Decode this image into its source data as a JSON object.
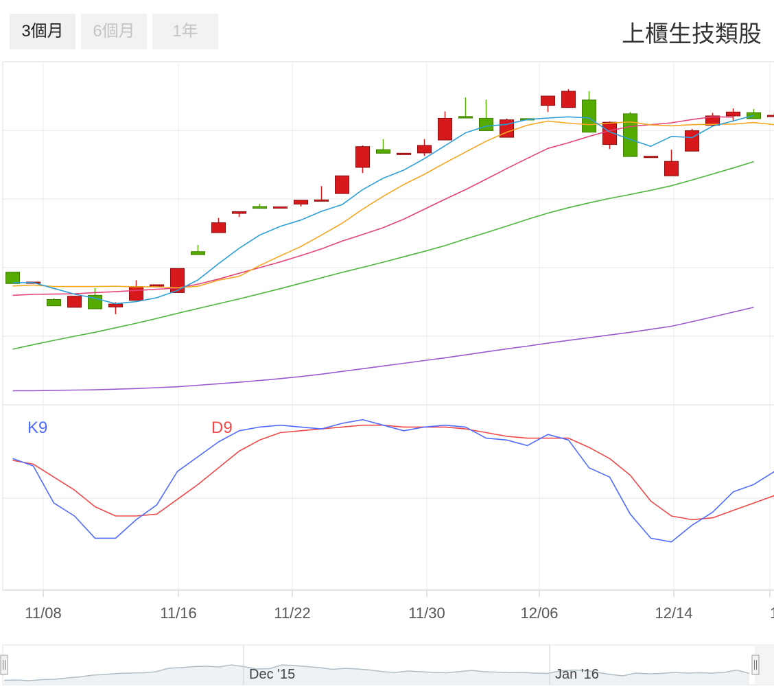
{
  "range_buttons": [
    {
      "label": "3個月",
      "active": true
    },
    {
      "label": "6個月",
      "active": false
    },
    {
      "label": "1年",
      "active": false
    }
  ],
  "colors": {
    "up_candle": "#d7191c",
    "down_candle": "#55aa00",
    "ma5": "#2b9fd9",
    "ma10": "#f5a623",
    "ma20": "#e4447a",
    "ma60": "#4db53c",
    "ma120": "#9b59d0",
    "k9": "#4f6bff",
    "d9": "#f04848",
    "grid": "#e6e6e6",
    "navigator_line": "#b0bdc5",
    "navigator_fill": "#eef2f4"
  },
  "chart_data": {
    "type": "candlestick",
    "title": "上櫃生技類股",
    "x_tick_labels": [
      "11/08",
      "11/16",
      "11/22",
      "11/30",
      "12/06",
      "12/14",
      "1"
    ],
    "candles": [
      {
        "o": 130.05,
        "c": 128.15,
        "h": 130.05,
        "l": 128.15
      },
      {
        "o": 128.4,
        "c": 128.4,
        "h": 128.4,
        "l": 128.4
      },
      {
        "o": 125.5,
        "c": 124.45,
        "h": 125.7,
        "l": 124.45
      },
      {
        "o": 124.2,
        "c": 126.05,
        "h": 126.05,
        "l": 124.2
      },
      {
        "o": 126.2,
        "c": 123.95,
        "h": 127.4,
        "l": 123.95
      },
      {
        "o": 124.25,
        "c": 124.75,
        "h": 125.05,
        "l": 123.05
      },
      {
        "o": 125.35,
        "c": 127.65,
        "h": 128.7,
        "l": 125.35
      },
      {
        "o": 127.95,
        "c": 127.95,
        "h": 127.95,
        "l": 127.95
      },
      {
        "o": 126.65,
        "c": 130.65,
        "h": 130.65,
        "l": 126.65
      },
      {
        "o": 133.45,
        "c": 132.95,
        "h": 134.55,
        "l": 132.95
      },
      {
        "o": 136.6,
        "c": 138.25,
        "h": 139.05,
        "l": 136.6
      },
      {
        "o": 139.8,
        "c": 140.1,
        "h": 140.1,
        "l": 139.2
      },
      {
        "o": 140.95,
        "c": 140.65,
        "h": 141.4,
        "l": 140.65
      },
      {
        "o": 140.9,
        "c": 140.9,
        "h": 140.9,
        "l": 140.9
      },
      {
        "o": 141.35,
        "c": 142.0,
        "h": 142.0,
        "l": 140.95
      },
      {
        "o": 141.9,
        "c": 142.05,
        "h": 144.35,
        "l": 141.9
      },
      {
        "o": 143.1,
        "c": 146.05,
        "h": 146.05,
        "l": 143.1
      },
      {
        "o": 147.45,
        "c": 150.9,
        "h": 151.1,
        "l": 146.5
      },
      {
        "o": 150.4,
        "c": 149.8,
        "h": 152.15,
        "l": 149.8
      },
      {
        "o": 149.8,
        "c": 149.8,
        "h": 149.8,
        "l": 149.8
      },
      {
        "o": 149.85,
        "c": 151.1,
        "h": 152.15,
        "l": 149.35
      },
      {
        "o": 152.0,
        "c": 155.6,
        "h": 156.75,
        "l": 152.0
      },
      {
        "o": 155.9,
        "c": 155.65,
        "h": 159.05,
        "l": 155.65
      },
      {
        "o": 155.6,
        "c": 153.55,
        "h": 158.7,
        "l": 153.55
      },
      {
        "o": 152.45,
        "c": 155.35,
        "h": 155.55,
        "l": 152.45
      },
      {
        "o": 155.55,
        "c": 155.5,
        "h": 155.55,
        "l": 155.5
      },
      {
        "o": 157.75,
        "c": 159.3,
        "h": 159.3,
        "l": 156.65
      },
      {
        "o": 157.4,
        "c": 160.1,
        "h": 160.45,
        "l": 157.4
      },
      {
        "o": 158.65,
        "c": 153.3,
        "h": 160.1,
        "l": 153.3
      },
      {
        "o": 151.25,
        "c": 154.95,
        "h": 155.1,
        "l": 150.5
      },
      {
        "o": 156.35,
        "c": 149.25,
        "h": 156.65,
        "l": 149.25
      },
      {
        "o": 149.3,
        "c": 149.3,
        "h": 149.3,
        "l": 149.3
      },
      {
        "o": 146.05,
        "c": 148.45,
        "h": 150.4,
        "l": 146.05
      },
      {
        "o": 150.15,
        "c": 153.55,
        "h": 153.85,
        "l": 150.15
      },
      {
        "o": 154.45,
        "c": 156.0,
        "h": 156.5,
        "l": 154.45
      },
      {
        "o": 156.0,
        "c": 156.65,
        "h": 157.25,
        "l": 155.2
      },
      {
        "o": 156.55,
        "c": 155.55,
        "h": 157.15,
        "l": 155.55
      },
      {
        "o": 156.0,
        "c": 156.1,
        "h": 156.5,
        "l": 155.9
      }
    ],
    "ma5": [
      128.3,
      128.3,
      127.35,
      126.4,
      125.7,
      124.8,
      125.15,
      125.8,
      127.0,
      128.75,
      131.45,
      134.0,
      136.2,
      137.65,
      138.7,
      140.15,
      141.25,
      143.75,
      145.65,
      147.0,
      148.9,
      151.05,
      153.2,
      154.3,
      154.6,
      155.4,
      155.65,
      155.85,
      155.65,
      153.35,
      152.1,
      150.95,
      152.6,
      152.4,
      154.3,
      155.15,
      156.1
    ],
    "ma10": [
      127.75,
      127.9,
      127.65,
      127.65,
      127.65,
      127.7,
      127.6,
      127.6,
      127.45,
      127.7,
      128.7,
      129.35,
      131.15,
      132.75,
      134.3,
      136.2,
      138.15,
      140.5,
      142.65,
      144.6,
      146.3,
      148.2,
      150.0,
      151.8,
      153.3,
      154.45,
      155.15,
      154.8,
      154.55,
      154.8,
      155.0,
      154.5,
      154.35,
      154.55,
      154.6,
      154.65,
      154.9,
      154.55
    ],
    "ma20": [
      126.2,
      126.35,
      126.4,
      126.45,
      126.65,
      126.8,
      127.0,
      127.2,
      127.4,
      128.05,
      128.9,
      129.85,
      130.8,
      131.75,
      132.8,
      133.9,
      135.2,
      136.3,
      137.45,
      138.85,
      140.5,
      142.15,
      143.75,
      145.5,
      147.25,
      148.95,
      150.6,
      151.55,
      152.6,
      153.55,
      154.25,
      154.55,
      154.85,
      155.4,
      155.85,
      155.8
    ],
    "ma60": [
      117.25,
      118.0,
      118.7,
      119.4,
      120.05,
      120.8,
      121.55,
      122.35,
      123.2,
      124.0,
      124.8,
      125.6,
      126.45,
      127.3,
      128.2,
      129.1,
      130.0,
      130.85,
      131.7,
      132.6,
      133.5,
      134.45,
      135.55,
      136.6,
      137.7,
      138.8,
      139.85,
      140.75,
      141.55,
      142.3,
      142.95,
      143.65,
      144.4,
      145.35,
      146.35,
      147.35,
      148.4
    ],
    "ma120": [
      110.35,
      110.35,
      110.4,
      110.45,
      110.5,
      110.6,
      110.7,
      110.85,
      111.0,
      111.25,
      111.5,
      111.75,
      112.05,
      112.35,
      112.7,
      113.1,
      113.55,
      114.0,
      114.45,
      114.9,
      115.35,
      115.8,
      116.3,
      116.8,
      117.3,
      117.75,
      118.25,
      118.7,
      119.15,
      119.6,
      120.05,
      120.55,
      121.05,
      121.8,
      122.6,
      123.4,
      124.2
    ],
    "k9": [
      71,
      67,
      47,
      40,
      28,
      28,
      38,
      46,
      64,
      72,
      80,
      86,
      88,
      89,
      88,
      87,
      90,
      92,
      89,
      86,
      88,
      89,
      88,
      82,
      81,
      78,
      84,
      81,
      66,
      61,
      41,
      28,
      26,
      35,
      42,
      53,
      57,
      64
    ],
    "d9": [
      70,
      68,
      61,
      54,
      45,
      40,
      40,
      41,
      49,
      57,
      66,
      75,
      81,
      85,
      86,
      87,
      88,
      89,
      89,
      88,
      88,
      88,
      87,
      85,
      83,
      82,
      82,
      82,
      77,
      71,
      62,
      48,
      40,
      38,
      39,
      43,
      47,
      51
    ],
    "k_label": "K9",
    "d_label": "D9",
    "navigator": {
      "labels": [
        "Dec '15",
        "Jan '16"
      ],
      "series": [
        0.05,
        0.06,
        0.04,
        0.07,
        0.08,
        0.12,
        0.15,
        0.2,
        0.22,
        0.25,
        0.26,
        0.27,
        0.3,
        0.4,
        0.42,
        0.45,
        0.46,
        0.44,
        0.5,
        0.45,
        0.38,
        0.39,
        0.5,
        0.48,
        0.45,
        0.42,
        0.37,
        0.4,
        0.38,
        0.35,
        0.3,
        0.28,
        0.32,
        0.3,
        0.28,
        0.27,
        0.3,
        0.34,
        0.3,
        0.29,
        0.27,
        0.28,
        0.26,
        0.25,
        0.32,
        0.35,
        0.34,
        0.28,
        0.22,
        0.18,
        0.26,
        0.24,
        0.25,
        0.28,
        0.26,
        0.27,
        0.26,
        0.28,
        0.35,
        0.25
      ]
    }
  }
}
